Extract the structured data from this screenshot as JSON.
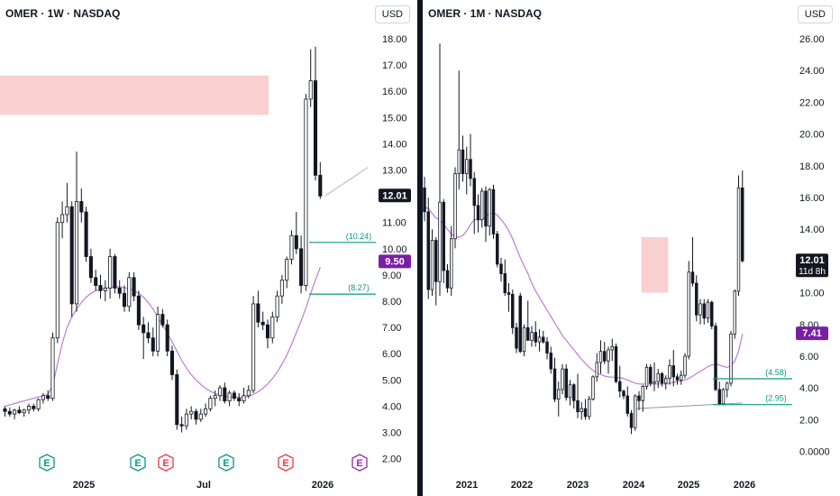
{
  "chart_data": [
    {
      "type": "candlestick",
      "title": "OMER · 1W · NASDAQ",
      "currency": "USD",
      "ylim": [
        1.5,
        18.5
      ],
      "y_ticks": [
        "18.00",
        "17.00",
        "16.00",
        "15.00",
        "14.00",
        "13.00",
        "12.00",
        "11.00",
        "10.00",
        "9.00",
        "8.00",
        "7.00",
        "6.00",
        "5.00",
        "4.00",
        "3.00",
        "2.00"
      ],
      "x_ticks": [
        {
          "label": "2025",
          "x": 93
        },
        {
          "label": "Jul",
          "x": 226
        },
        {
          "label": "2026",
          "x": 358
        }
      ],
      "price_labels": [
        {
          "text": "12.01",
          "value": 12.01,
          "bg": "#131722"
        },
        {
          "text": "9.50",
          "value": 9.5,
          "bg": "#7b1fa2"
        }
      ],
      "annotations": [
        {
          "text": "(10.24)",
          "value": 10.24,
          "color": "#089981"
        },
        {
          "text": "(8.27)",
          "value": 8.27,
          "color": "#089981"
        }
      ],
      "zones": [
        {
          "from": 15.1,
          "to": 16.6,
          "color": "#f9cfd0"
        }
      ],
      "earnings_markers": [
        {
          "x": 52,
          "type": "E",
          "color": "#089981"
        },
        {
          "x": 153,
          "type": "E",
          "color": "#089981"
        },
        {
          "x": 184,
          "type": "E",
          "color": "#f23645"
        },
        {
          "x": 251,
          "type": "E",
          "color": "#089981"
        },
        {
          "x": 317,
          "type": "E",
          "color": "#f23645"
        },
        {
          "x": 399,
          "type": "E",
          "color": "#9c27b0"
        }
      ],
      "candles": [
        [
          3.9,
          4.0,
          3.6,
          3.8
        ],
        [
          3.8,
          3.95,
          3.6,
          3.7
        ],
        [
          3.7,
          3.9,
          3.5,
          3.85
        ],
        [
          3.85,
          4.0,
          3.7,
          3.75
        ],
        [
          3.75,
          3.9,
          3.6,
          3.85
        ],
        [
          3.85,
          4.1,
          3.7,
          4.0
        ],
        [
          4.0,
          4.1,
          3.8,
          3.9
        ],
        [
          3.9,
          4.3,
          3.8,
          4.25
        ],
        [
          4.25,
          4.5,
          4.1,
          4.4
        ],
        [
          4.4,
          4.6,
          4.2,
          4.3
        ],
        [
          4.3,
          6.8,
          4.2,
          6.6
        ],
        [
          6.6,
          11.2,
          6.4,
          11.0
        ],
        [
          11.0,
          11.8,
          10.4,
          11.3
        ],
        [
          11.3,
          12.5,
          11.0,
          11.6
        ],
        [
          11.6,
          11.8,
          7.4,
          7.9
        ],
        [
          7.9,
          13.7,
          7.6,
          11.8
        ],
        [
          11.8,
          12.3,
          11.0,
          11.4
        ],
        [
          11.4,
          11.6,
          9.5,
          9.7
        ],
        [
          9.7,
          10.0,
          8.7,
          8.9
        ],
        [
          8.9,
          9.2,
          8.4,
          8.6
        ],
        [
          8.6,
          9.0,
          8.1,
          8.4
        ],
        [
          8.4,
          8.8,
          8.0,
          8.5
        ],
        [
          8.5,
          10.0,
          8.1,
          9.7
        ],
        [
          9.7,
          9.8,
          8.3,
          8.5
        ],
        [
          8.5,
          8.8,
          8.1,
          8.3
        ],
        [
          8.3,
          8.6,
          7.6,
          7.8
        ],
        [
          7.8,
          9.1,
          7.6,
          8.9
        ],
        [
          8.9,
          9.1,
          8.0,
          8.2
        ],
        [
          8.2,
          8.4,
          6.9,
          7.1
        ],
        [
          7.1,
          7.4,
          5.8,
          6.8
        ],
        [
          6.8,
          7.2,
          6.4,
          6.6
        ],
        [
          6.6,
          7.0,
          5.9,
          6.1
        ],
        [
          6.1,
          7.8,
          5.9,
          7.5
        ],
        [
          7.5,
          7.7,
          7.0,
          7.1
        ],
        [
          7.1,
          7.3,
          5.9,
          6.1
        ],
        [
          6.1,
          6.3,
          5.0,
          5.2
        ],
        [
          5.2,
          5.4,
          3.1,
          3.3
        ],
        [
          3.3,
          3.6,
          3.0,
          3.25
        ],
        [
          3.25,
          3.9,
          3.1,
          3.7
        ],
        [
          3.7,
          4.0,
          3.5,
          3.8
        ],
        [
          3.8,
          3.9,
          3.3,
          3.5
        ],
        [
          3.5,
          3.9,
          3.4,
          3.7
        ],
        [
          3.7,
          4.1,
          3.6,
          3.9
        ],
        [
          3.9,
          4.4,
          3.8,
          4.3
        ],
        [
          4.3,
          4.6,
          4.0,
          4.4
        ],
        [
          4.4,
          4.8,
          4.2,
          4.7
        ],
        [
          4.7,
          4.9,
          4.1,
          4.2
        ],
        [
          4.2,
          4.6,
          4.0,
          4.5
        ],
        [
          4.5,
          4.6,
          4.2,
          4.3
        ],
        [
          4.3,
          4.5,
          4.0,
          4.2
        ],
        [
          4.2,
          4.7,
          4.1,
          4.4
        ],
        [
          4.4,
          4.8,
          4.3,
          4.6
        ],
        [
          4.6,
          8.2,
          4.5,
          7.9
        ],
        [
          7.9,
          8.4,
          7.0,
          7.2
        ],
        [
          7.2,
          7.6,
          6.9,
          7.1
        ],
        [
          7.1,
          7.3,
          6.2,
          6.6
        ],
        [
          6.6,
          7.6,
          6.4,
          7.4
        ],
        [
          7.4,
          8.4,
          7.2,
          8.2
        ],
        [
          8.2,
          9.0,
          7.9,
          8.8
        ],
        [
          8.8,
          9.7,
          8.5,
          9.6
        ],
        [
          9.6,
          10.7,
          9.4,
          10.5
        ],
        [
          10.5,
          11.4,
          9.8,
          10.0
        ],
        [
          10.0,
          10.5,
          8.3,
          8.6
        ],
        [
          8.6,
          15.9,
          8.4,
          15.7
        ],
        [
          15.7,
          17.6,
          15.4,
          16.4
        ],
        [
          16.4,
          17.7,
          12.6,
          12.8
        ],
        [
          12.8,
          13.3,
          11.9,
          12.01
        ]
      ],
      "ma_series": [
        4.0,
        4.05,
        4.1,
        4.15,
        4.2,
        4.25,
        4.3,
        4.35,
        4.4,
        4.45,
        4.8,
        5.6,
        6.4,
        7.0,
        7.4,
        7.7,
        7.95,
        8.15,
        8.3,
        8.4,
        8.47,
        8.5,
        8.53,
        8.55,
        8.55,
        8.52,
        8.47,
        8.4,
        8.3,
        8.15,
        7.95,
        7.7,
        7.4,
        7.1,
        6.8,
        6.45,
        6.1,
        5.75,
        5.45,
        5.2,
        5.0,
        4.83,
        4.68,
        4.57,
        4.48,
        4.42,
        4.38,
        4.35,
        4.34,
        4.34,
        4.35,
        4.38,
        4.45,
        4.55,
        4.68,
        4.85,
        5.05,
        5.3,
        5.6,
        5.95,
        6.35,
        6.8,
        7.25,
        7.75,
        8.3,
        8.8,
        9.3
      ],
      "projection": {
        "from": [
          67,
          12.01
        ],
        "to": [
          76,
          13.1
        ]
      }
    },
    {
      "type": "candlestick",
      "title": "OMER · 1M · NASDAQ",
      "currency": "USD",
      "ylim": [
        -0.5,
        26.5
      ],
      "y_ticks": [
        "26.00",
        "24.00",
        "22.00",
        "20.00",
        "18.00",
        "16.00",
        "14.00",
        "12.00",
        "10.00",
        "8.00",
        "6.00",
        "4.00",
        "2.00",
        "0.0000"
      ],
      "x_ticks": [
        {
          "label": "2021",
          "x": 49
        },
        {
          "label": "2022",
          "x": 110
        },
        {
          "label": "2023",
          "x": 172
        },
        {
          "label": "2024",
          "x": 234
        },
        {
          "label": "2025",
          "x": 295
        },
        {
          "label": "2026",
          "x": 357
        }
      ],
      "price_labels": [
        {
          "text": "12.01",
          "value": 12.01,
          "bg": "#131722",
          "subtext": "11d 8h"
        },
        {
          "text": "7.41",
          "value": 7.41,
          "bg": "#7b1fa2"
        }
      ],
      "annotations": [
        {
          "text": "(4.58)",
          "value": 4.58,
          "color": "#089981"
        },
        {
          "text": "(2.95)",
          "value": 2.95,
          "color": "#089981"
        }
      ],
      "zones": [
        {
          "from_idx": 56.6,
          "to_idx": 63.6,
          "from": 10.0,
          "to": 13.5,
          "color": "#f9cfd0"
        }
      ],
      "candles": [
        [
          16.6,
          17.3,
          14.5,
          15.1
        ],
        [
          15.1,
          16.0,
          9.6,
          10.2
        ],
        [
          10.2,
          14.0,
          9.8,
          13.3
        ],
        [
          13.3,
          13.5,
          9.2,
          10.7
        ],
        [
          10.7,
          25.7,
          9.8,
          15.7
        ],
        [
          15.7,
          15.9,
          10.6,
          11.4
        ],
        [
          11.4,
          11.8,
          10.0,
          10.3
        ],
        [
          10.3,
          14.2,
          9.8,
          13.4
        ],
        [
          13.4,
          17.9,
          12.8,
          17.5
        ],
        [
          17.5,
          24.0,
          16.5,
          19.0
        ],
        [
          19.0,
          19.9,
          17.0,
          17.5
        ],
        [
          17.5,
          19.2,
          16.2,
          18.4
        ],
        [
          18.4,
          20.0,
          16.7,
          17.2
        ],
        [
          17.2,
          17.6,
          13.7,
          15.5
        ],
        [
          15.5,
          16.2,
          13.8,
          14.6
        ],
        [
          14.6,
          16.6,
          14.1,
          16.4
        ],
        [
          16.4,
          16.7,
          13.2,
          14.2
        ],
        [
          14.2,
          16.6,
          13.6,
          16.5
        ],
        [
          16.5,
          16.8,
          13.4,
          13.7
        ],
        [
          13.7,
          13.9,
          11.6,
          11.8
        ],
        [
          11.8,
          12.2,
          10.7,
          11.2
        ],
        [
          11.2,
          12.1,
          9.8,
          10.0
        ],
        [
          10.0,
          10.6,
          8.8,
          9.9
        ],
        [
          9.9,
          10.2,
          7.4,
          7.8
        ],
        [
          7.8,
          8.1,
          6.2,
          6.5
        ],
        [
          9.8,
          10.0,
          6.2,
          6.3
        ],
        [
          6.3,
          8.0,
          6.0,
          7.8
        ],
        [
          7.8,
          9.5,
          7.0,
          7.0
        ],
        [
          7.0,
          7.9,
          6.6,
          7.5
        ],
        [
          7.5,
          8.2,
          6.6,
          6.9
        ],
        [
          6.9,
          7.7,
          6.3,
          7.2
        ],
        [
          7.2,
          7.6,
          6.8,
          6.9
        ],
        [
          6.9,
          7.2,
          5.8,
          6.2
        ],
        [
          6.2,
          6.6,
          4.9,
          5.2
        ],
        [
          5.2,
          5.9,
          3.1,
          3.3
        ],
        [
          3.3,
          4.4,
          2.2,
          3.9
        ],
        [
          3.9,
          5.5,
          3.6,
          5.2
        ],
        [
          5.2,
          5.5,
          3.2,
          3.4
        ],
        [
          3.4,
          4.5,
          2.9,
          4.2
        ],
        [
          4.2,
          4.3,
          2.7,
          3.2
        ],
        [
          3.2,
          4.9,
          2.1,
          2.5
        ],
        [
          2.5,
          3.1,
          2.0,
          2.7
        ],
        [
          2.7,
          3.3,
          2.0,
          2.2
        ],
        [
          2.2,
          3.5,
          2.0,
          3.3
        ],
        [
          3.3,
          4.8,
          3.2,
          4.7
        ],
        [
          4.7,
          6.2,
          4.4,
          5.6
        ],
        [
          5.6,
          7.0,
          4.9,
          6.3
        ],
        [
          6.3,
          6.9,
          5.5,
          5.7
        ],
        [
          5.7,
          6.6,
          4.9,
          6.4
        ],
        [
          6.4,
          7.1,
          5.7,
          6.6
        ],
        [
          6.6,
          6.8,
          4.3,
          4.4
        ],
        [
          4.4,
          5.4,
          3.4,
          3.8
        ],
        [
          3.8,
          3.9,
          3.3,
          3.5
        ],
        [
          3.5,
          4.1,
          2.2,
          2.4
        ],
        [
          2.4,
          2.6,
          1.1,
          1.5
        ],
        [
          1.5,
          3.6,
          1.3,
          3.5
        ],
        [
          3.5,
          3.8,
          2.6,
          3.2
        ],
        [
          3.2,
          4.2,
          2.5,
          4.1
        ],
        [
          4.1,
          5.5,
          3.9,
          5.3
        ],
        [
          5.3,
          5.5,
          4.1,
          4.3
        ],
        [
          4.3,
          5.6,
          3.8,
          4.4
        ],
        [
          4.4,
          5.2,
          4.0,
          4.9
        ],
        [
          4.9,
          5.0,
          4.1,
          4.3
        ],
        [
          4.3,
          4.8,
          3.9,
          4.6
        ],
        [
          4.6,
          5.8,
          4.2,
          5.4
        ],
        [
          5.4,
          6.4,
          4.1,
          4.7
        ],
        [
          4.7,
          4.9,
          4.2,
          4.5
        ],
        [
          4.5,
          5.1,
          4.2,
          4.8
        ],
        [
          4.8,
          6.2,
          4.6,
          6.0
        ],
        [
          6.0,
          12.0,
          5.8,
          11.3
        ],
        [
          11.3,
          13.5,
          10.4,
          10.6
        ],
        [
          10.6,
          11.1,
          8.2,
          8.6
        ],
        [
          8.6,
          9.6,
          8.0,
          9.3
        ],
        [
          9.3,
          9.6,
          8.0,
          8.4
        ],
        [
          8.4,
          9.6,
          8.1,
          9.4
        ],
        [
          9.4,
          9.5,
          7.7,
          7.9
        ],
        [
          7.9,
          8.1,
          3.8,
          3.9
        ],
        [
          3.9,
          4.4,
          2.9,
          3.0
        ],
        [
          3.0,
          4.0,
          2.9,
          3.9
        ],
        [
          3.9,
          4.4,
          3.4,
          4.3
        ],
        [
          4.3,
          7.6,
          4.1,
          7.4
        ],
        [
          7.4,
          10.2,
          7.1,
          10.1
        ],
        [
          10.1,
          17.4,
          9.8,
          16.6
        ],
        [
          16.6,
          17.7,
          11.9,
          12.01
        ]
      ],
      "ma_series": [
        15.4,
        15.3,
        15.0,
        14.7,
        14.6,
        14.3,
        14.0,
        13.7,
        13.5,
        13.5,
        13.6,
        13.9,
        14.3,
        14.6,
        14.6,
        14.6,
        14.8,
        15.0,
        15.0,
        14.9,
        14.6,
        14.3,
        13.9,
        13.4,
        12.8,
        12.2,
        11.7,
        11.2,
        10.6,
        10.1,
        9.7,
        9.3,
        8.9,
        8.5,
        8.1,
        7.7,
        7.3,
        7.0,
        6.7,
        6.4,
        6.1,
        5.8,
        5.55,
        5.3,
        5.1,
        4.95,
        4.85,
        4.75,
        4.7,
        4.68,
        4.66,
        4.64,
        4.6,
        4.5,
        4.4,
        4.3,
        4.25,
        4.25,
        4.25,
        4.25,
        4.25,
        4.25,
        4.25,
        4.25,
        4.3,
        4.35,
        4.4,
        4.45,
        4.5,
        4.6,
        4.75,
        4.9,
        5.05,
        5.2,
        5.35,
        5.45,
        5.5,
        5.45,
        5.35,
        5.3,
        5.4,
        5.7,
        6.3,
        7.41
      ],
      "support_line": {
        "from": [
          55,
          2.7
        ],
        "to": [
          83,
          3.05
        ]
      }
    }
  ]
}
